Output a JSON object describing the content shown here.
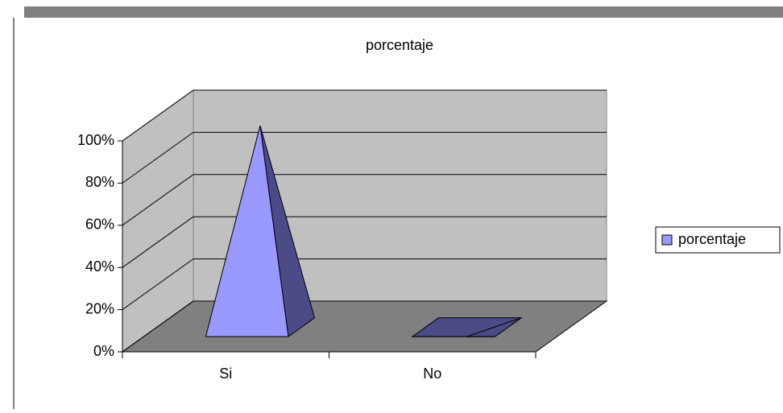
{
  "chart_data": {
    "type": "bar",
    "title": "porcentaje",
    "categories": [
      "Si",
      "No"
    ],
    "series": [
      {
        "name": "porcentaje",
        "color": "#9999ff",
        "values": [
          100,
          0
        ]
      }
    ],
    "ylim": [
      0,
      100
    ],
    "yticks": [
      {
        "value": 0,
        "label": "0%"
      },
      {
        "value": 20,
        "label": "20%"
      },
      {
        "value": 40,
        "label": "40%"
      },
      {
        "value": 60,
        "label": "60%"
      },
      {
        "value": 80,
        "label": "80%"
      },
      {
        "value": 100,
        "label": "100%"
      }
    ],
    "grid": true,
    "legend": "right"
  }
}
